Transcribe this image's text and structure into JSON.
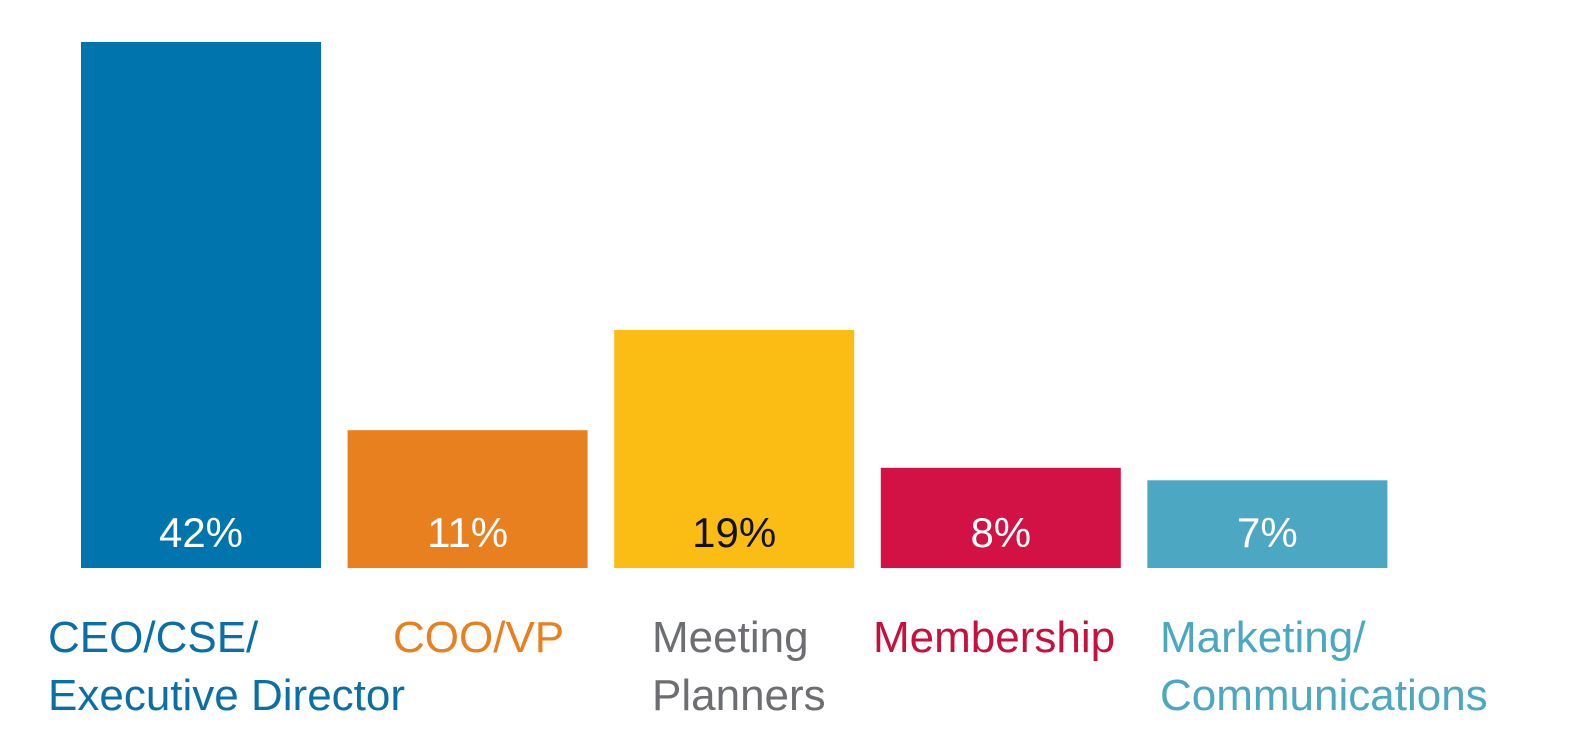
{
  "chart_data": {
    "type": "bar",
    "categories": [
      [
        "CEO/CSE/",
        "Executive Director"
      ],
      [
        "COO/VP"
      ],
      [
        "Meeting",
        "Planners"
      ],
      [
        "Membership"
      ],
      [
        "Marketing/",
        "Communications"
      ]
    ],
    "values": [
      42,
      11,
      19,
      8,
      7
    ],
    "value_labels": [
      "42%",
      "11%",
      "19%",
      "8%",
      "7%"
    ],
    "bar_colors": [
      "#0075ad",
      "#e8801f",
      "#fbbd13",
      "#d21145",
      "#4ba7c2"
    ],
    "value_label_colors": [
      "#ffffff",
      "#ffffff",
      "#111111",
      "#ffffff",
      "#ffffff"
    ],
    "category_label_colors": [
      "#0a6fa7",
      "#e8801f",
      "#6d6e71",
      "#c8103f",
      "#4ba7c2"
    ],
    "ylim": [
      0,
      42
    ],
    "grid": false,
    "legend": "none",
    "title": "",
    "xlabel": "",
    "ylabel": ""
  }
}
